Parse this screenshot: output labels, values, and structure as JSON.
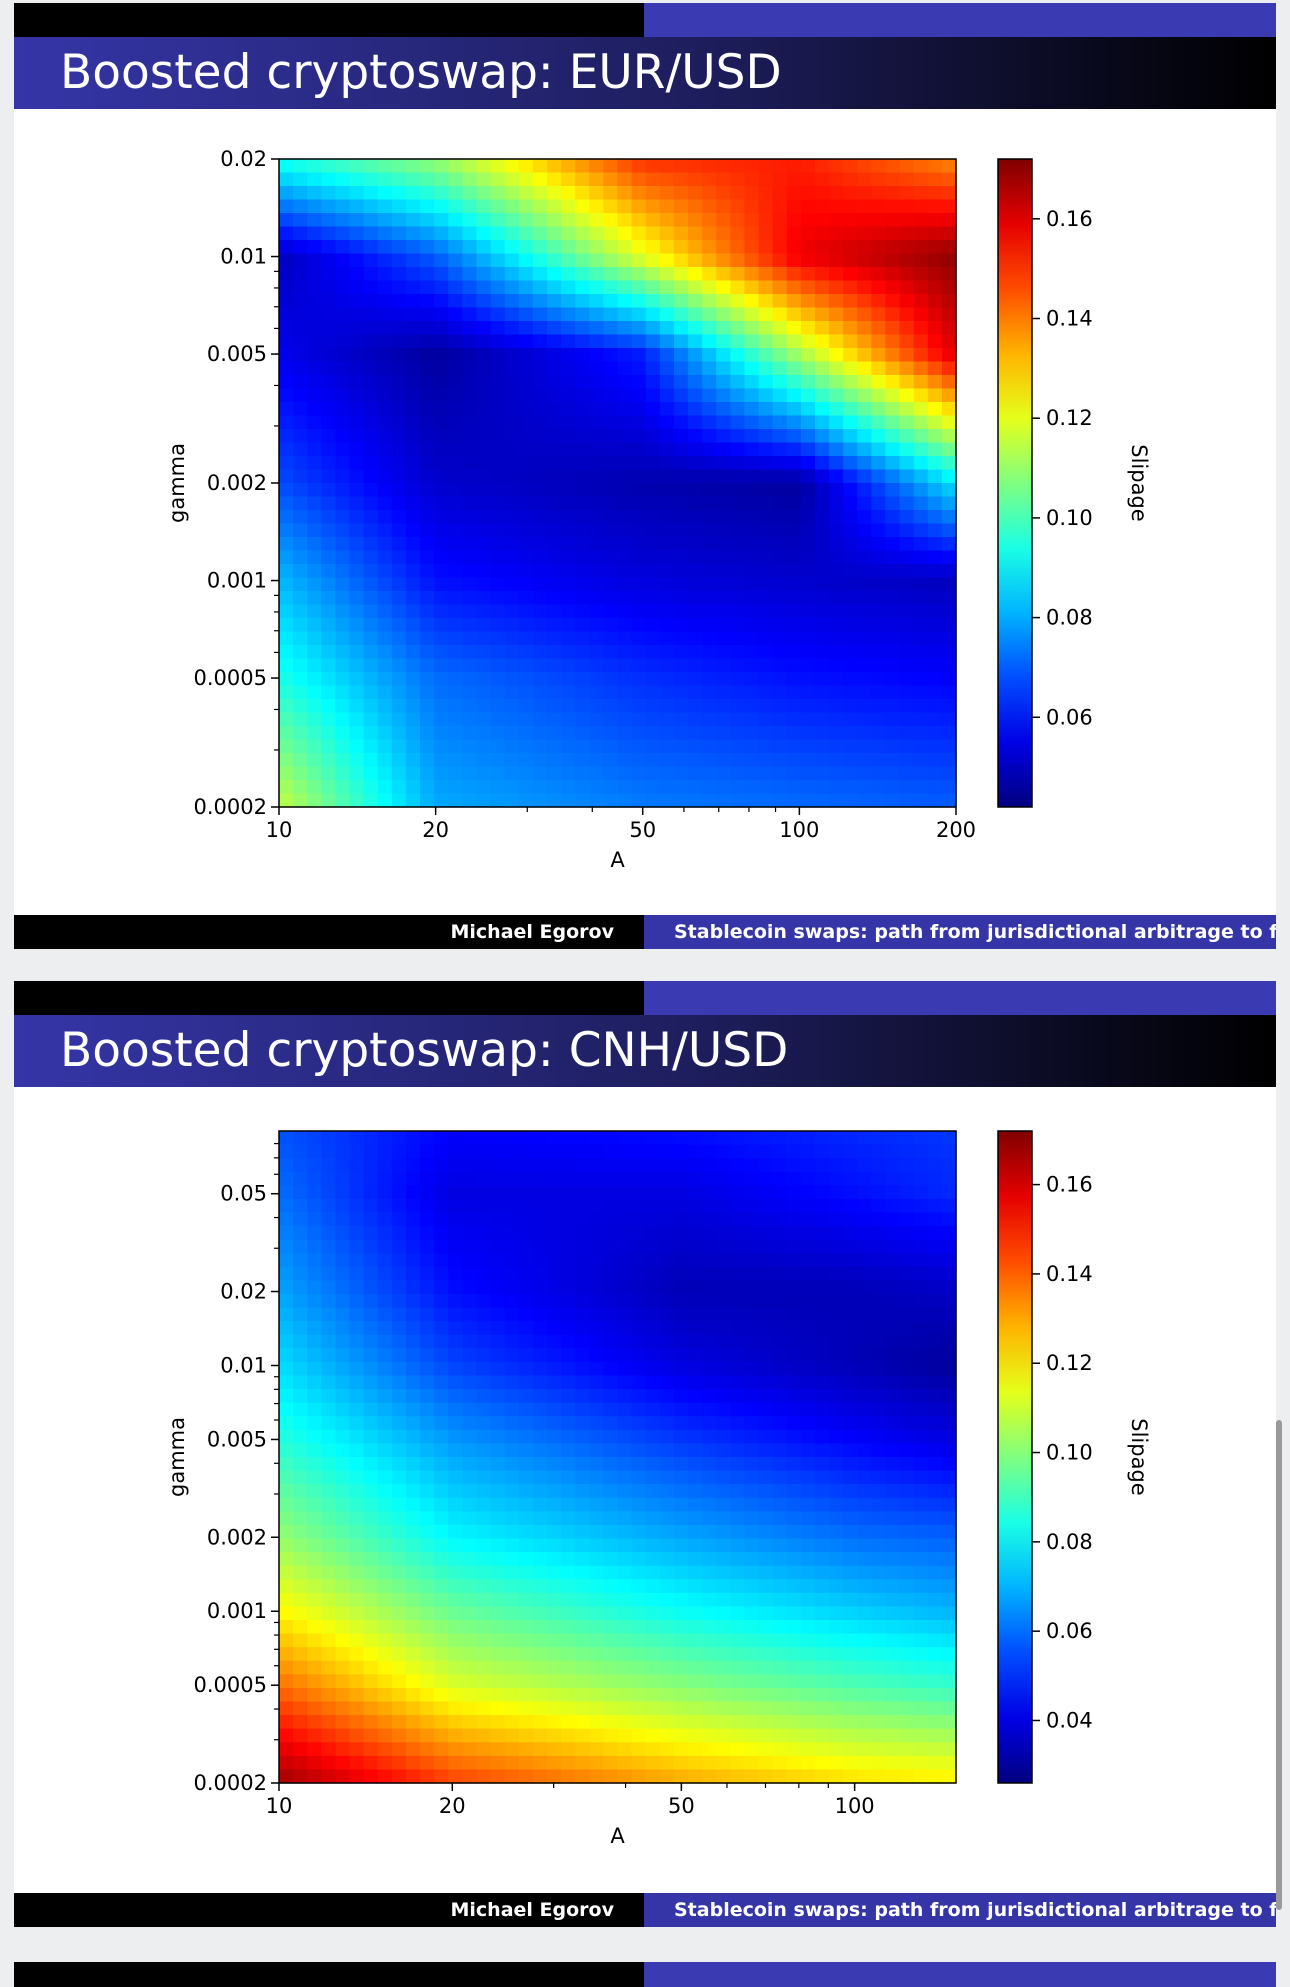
{
  "slides": [
    {
      "title": "Boosted cryptoswap: EUR/USD",
      "footer_author": "Michael Egorov",
      "footer_talk": "Stablecoin swaps: path from jurisdictional arbitrage to foreign exchange"
    },
    {
      "title": "Boosted cryptoswap: CNH/USD",
      "footer_author": "Michael Egorov",
      "footer_talk": "Stablecoin swaps: path from jurisdictional arbitrage to foreign exchange"
    }
  ],
  "chart_data": [
    {
      "type": "heatmap",
      "title": "",
      "xlabel": "A",
      "ylabel": "gamma",
      "colorbar_label": "Slipage",
      "colormap": "jet",
      "x_scale": "log",
      "y_scale": "log",
      "xlim": [
        10,
        200
      ],
      "ylim": [
        0.0002,
        0.02
      ],
      "x_ticks": [
        "10",
        "20",
        "50",
        "100",
        "200"
      ],
      "x_tick_values": [
        10,
        20,
        50,
        100,
        200
      ],
      "y_ticks": [
        "0.0002",
        "0.0005",
        "0.001",
        "0.002",
        "0.005",
        "0.01",
        "0.02"
      ],
      "y_tick_values": [
        0.0002,
        0.0005,
        0.001,
        0.002,
        0.005,
        0.01,
        0.02
      ],
      "color_range": [
        0.042,
        0.172
      ],
      "colorbar_ticks": [
        "0.06",
        "0.08",
        "0.10",
        "0.12",
        "0.14",
        "0.16"
      ],
      "colorbar_tick_values": [
        0.06,
        0.08,
        0.1,
        0.12,
        0.14,
        0.16
      ],
      "x_samples": [
        10,
        20,
        50,
        100,
        200
      ],
      "y_samples": [
        0.0002,
        0.0005,
        0.001,
        0.002,
        0.005,
        0.01,
        0.02
      ],
      "values": [
        [
          0.116,
          0.08,
          0.074,
          0.072,
          0.07
        ],
        [
          0.094,
          0.072,
          0.064,
          0.06,
          0.058
        ],
        [
          0.082,
          0.06,
          0.054,
          0.052,
          0.05
        ],
        [
          0.068,
          0.052,
          0.048,
          0.046,
          0.088
        ],
        [
          0.056,
          0.046,
          0.062,
          0.112,
          0.16
        ],
        [
          0.05,
          0.07,
          0.12,
          0.158,
          0.17
        ],
        [
          0.094,
          0.11,
          0.15,
          0.152,
          0.138
        ]
      ]
    },
    {
      "type": "heatmap",
      "title": "",
      "xlabel": "A",
      "ylabel": "gamma",
      "colorbar_label": "Slipage",
      "colormap": "jet",
      "x_scale": "log",
      "y_scale": "log",
      "xlim": [
        10,
        150
      ],
      "ylim": [
        0.0002,
        0.09
      ],
      "x_ticks": [
        "10",
        "20",
        "50",
        "100"
      ],
      "x_tick_values": [
        10,
        20,
        50,
        100
      ],
      "y_ticks": [
        "0.0002",
        "0.0005",
        "0.001",
        "0.002",
        "0.005",
        "0.01",
        "0.02",
        "0.05"
      ],
      "y_tick_values": [
        0.0002,
        0.0005,
        0.001,
        0.002,
        0.005,
        0.01,
        0.02,
        0.05
      ],
      "color_range": [
        0.026,
        0.172
      ],
      "colorbar_ticks": [
        "0.04",
        "0.06",
        "0.08",
        "0.10",
        "0.12",
        "0.14",
        "0.16"
      ],
      "colorbar_tick_values": [
        0.04,
        0.06,
        0.08,
        0.1,
        0.12,
        0.14,
        0.16
      ],
      "x_samples": [
        10,
        20,
        50,
        100,
        150
      ],
      "y_samples": [
        0.0002,
        0.0005,
        0.001,
        0.002,
        0.005,
        0.01,
        0.02,
        0.05,
        0.09
      ],
      "values": [
        [
          0.168,
          0.145,
          0.13,
          0.122,
          0.12
        ],
        [
          0.138,
          0.112,
          0.1,
          0.092,
          0.088
        ],
        [
          0.118,
          0.096,
          0.082,
          0.074,
          0.07
        ],
        [
          0.102,
          0.08,
          0.068,
          0.06,
          0.058
        ],
        [
          0.086,
          0.066,
          0.052,
          0.044,
          0.04
        ],
        [
          0.076,
          0.054,
          0.04,
          0.034,
          0.03
        ],
        [
          0.068,
          0.046,
          0.034,
          0.034,
          0.036
        ],
        [
          0.06,
          0.04,
          0.04,
          0.046,
          0.05
        ],
        [
          0.056,
          0.044,
          0.046,
          0.05,
          0.052
        ]
      ]
    }
  ]
}
